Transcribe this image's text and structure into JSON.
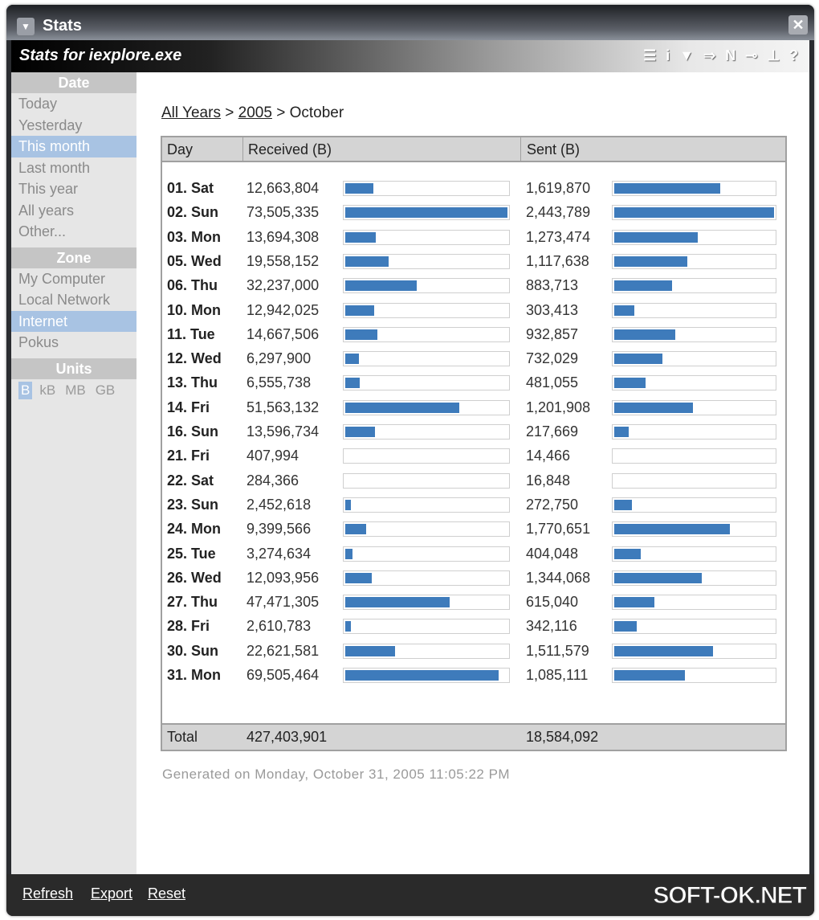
{
  "window": {
    "title": "Stats",
    "subtitle": "Stats for iexplore.exe"
  },
  "toolbar_icons": [
    "list-icon",
    "info-icon",
    "filter-icon",
    "arrow-icon",
    "n-icon",
    "key-icon",
    "network-icon",
    "help-icon"
  ],
  "sidebar": {
    "date_header": "Date",
    "date_items": [
      {
        "label": "Today"
      },
      {
        "label": "Yesterday"
      },
      {
        "label": "This month",
        "selected": true
      },
      {
        "label": "Last month"
      },
      {
        "label": "This year"
      },
      {
        "label": "All years"
      },
      {
        "label": "Other..."
      }
    ],
    "zone_header": "Zone",
    "zone_items": [
      {
        "label": "My Computer"
      },
      {
        "label": "Local Network"
      },
      {
        "label": "Internet",
        "selected": true
      },
      {
        "label": "Pokus"
      }
    ],
    "units_header": "Units",
    "units": [
      {
        "label": "B",
        "selected": true
      },
      {
        "label": "kB"
      },
      {
        "label": "MB"
      },
      {
        "label": "GB"
      }
    ]
  },
  "breadcrumb": {
    "all_years": "All Years",
    "sep": ">",
    "year": "2005",
    "month": "October"
  },
  "table": {
    "headers": {
      "day": "Day",
      "received": "Received (B)",
      "sent": "Sent (B)"
    },
    "rows": [
      {
        "day": "01. Sat",
        "received": "12,663,804",
        "sent": "1,619,870"
      },
      {
        "day": "02. Sun",
        "received": "73,505,335",
        "sent": "2,443,789"
      },
      {
        "day": "03. Mon",
        "received": "13,694,308",
        "sent": "1,273,474"
      },
      {
        "day": "05. Wed",
        "received": "19,558,152",
        "sent": "1,117,638"
      },
      {
        "day": "06. Thu",
        "received": "32,237,000",
        "sent": "883,713"
      },
      {
        "day": "10. Mon",
        "received": "12,942,025",
        "sent": "303,413"
      },
      {
        "day": "11. Tue",
        "received": "14,667,506",
        "sent": "932,857"
      },
      {
        "day": "12. Wed",
        "received": "6,297,900",
        "sent": "732,029"
      },
      {
        "day": "13. Thu",
        "received": "6,555,738",
        "sent": "481,055"
      },
      {
        "day": "14. Fri",
        "received": "51,563,132",
        "sent": "1,201,908"
      },
      {
        "day": "16. Sun",
        "received": "13,596,734",
        "sent": "217,669"
      },
      {
        "day": "21. Fri",
        "received": "407,994",
        "sent": "14,466"
      },
      {
        "day": "22. Sat",
        "received": "284,366",
        "sent": "16,848"
      },
      {
        "day": "23. Sun",
        "received": "2,452,618",
        "sent": "272,750"
      },
      {
        "day": "24. Mon",
        "received": "9,399,566",
        "sent": "1,770,651"
      },
      {
        "day": "25. Tue",
        "received": "3,274,634",
        "sent": "404,048"
      },
      {
        "day": "26. Wed",
        "received": "12,093,956",
        "sent": "1,344,068"
      },
      {
        "day": "27. Thu",
        "received": "47,471,305",
        "sent": "615,040"
      },
      {
        "day": "28. Fri",
        "received": "2,610,783",
        "sent": "342,116"
      },
      {
        "day": "30. Sun",
        "received": "22,621,581",
        "sent": "1,511,579"
      },
      {
        "day": "31. Mon",
        "received": "69,505,464",
        "sent": "1,085,111"
      }
    ],
    "total": {
      "label": "Total",
      "received": "427,403,901",
      "sent": "18,584,092"
    },
    "bar_color": "#3e7bbb"
  },
  "generated": "Generated on Monday, October 31, 2005 11:05:22 PM",
  "footer": {
    "refresh": "Refresh",
    "export": "Export",
    "reset": "Reset"
  },
  "watermark": "SOFT-OK.NET"
}
